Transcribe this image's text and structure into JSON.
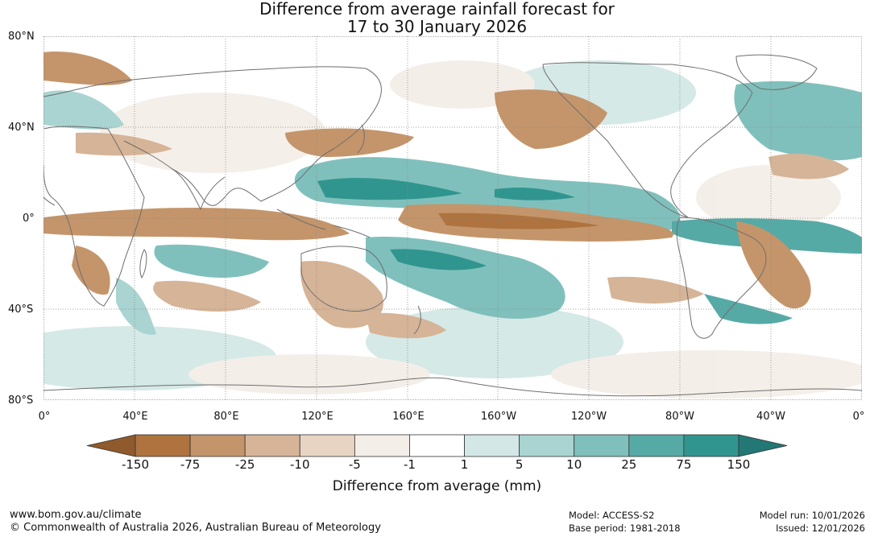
{
  "title": {
    "line1": "Difference from average rainfall forecast for",
    "line2": "17 to 30 January 2026"
  },
  "lat_labels": [
    "80°N",
    "40°N",
    "0°",
    "40°S",
    "80°S"
  ],
  "lon_labels": [
    "0°",
    "40°E",
    "80°E",
    "120°E",
    "160°E",
    "160°W",
    "120°W",
    "80°W",
    "40°W",
    "0°"
  ],
  "colorbar": {
    "ticks": [
      "-150",
      "-75",
      "-25",
      "-10",
      "-5",
      "-1",
      "1",
      "5",
      "10",
      "25",
      "75",
      "150"
    ],
    "colors": [
      "#8f5a2c",
      "#ae733e",
      "#c4956a",
      "#d6b497",
      "#e7d4c3",
      "#f4eee8",
      "#ffffff",
      "#d3e8e6",
      "#a9d4d1",
      "#80c0bc",
      "#56aaa6",
      "#31958f",
      "#237875"
    ],
    "label": "Difference from average (mm)"
  },
  "footer": {
    "url": "www.bom.gov.au/climate",
    "copyright": "© Commonwealth of Australia 2026, Australian Bureau of Meteorology",
    "model": "Model: ACCESS-S2",
    "base_period": "Base period: 1981-2018",
    "model_run": "Model run: 10/01/2026",
    "issued": "Issued: 12/01/2026"
  }
}
